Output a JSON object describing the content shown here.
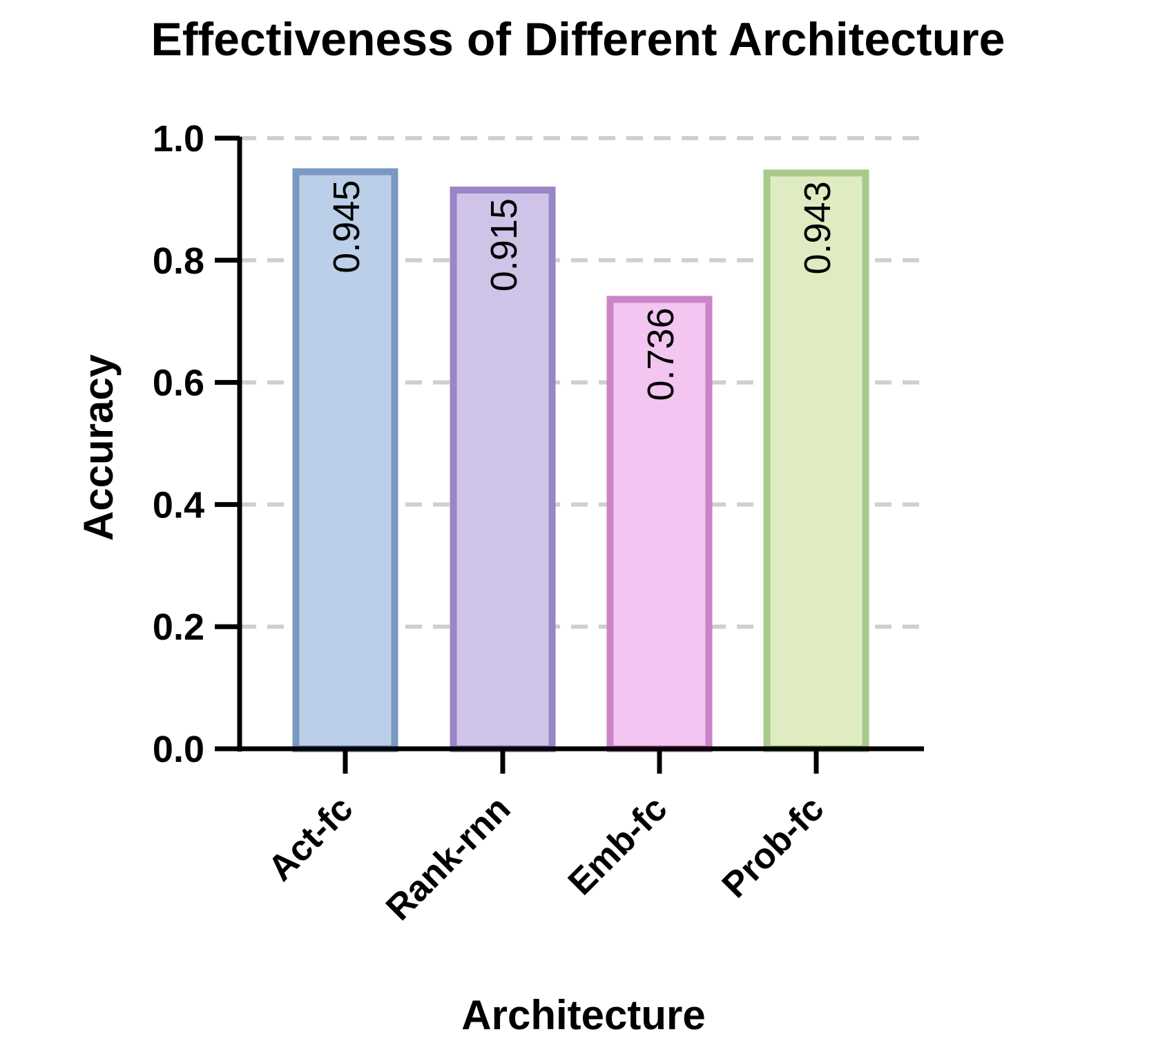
{
  "chart_data": {
    "type": "bar",
    "title": "Effectiveness of Different Architecture",
    "xlabel": "Architecture",
    "ylabel": "Accuracy",
    "ylim": [
      0,
      1.0
    ],
    "yticks": [
      0.0,
      0.2,
      0.4,
      0.6,
      0.8,
      1.0
    ],
    "ytick_labels": [
      "0.0",
      "0.2",
      "0.4",
      "0.6",
      "0.8",
      "1.0"
    ],
    "grid": "horizontal dashed",
    "categories": [
      "Act-fc",
      "Rank-rnn",
      "Emb-fc",
      "Prob-fc"
    ],
    "values": [
      0.945,
      0.915,
      0.736,
      0.943
    ],
    "value_labels": [
      "0.945",
      "0.915",
      "0.736",
      "0.943"
    ],
    "bar_fill_colors": [
      "#bccfe8",
      "#d0c3e8",
      "#f2c6f0",
      "#dfecc2"
    ],
    "bar_edge_colors": [
      "#7b98c3",
      "#9a85c7",
      "#c985c8",
      "#a8c98a"
    ]
  }
}
